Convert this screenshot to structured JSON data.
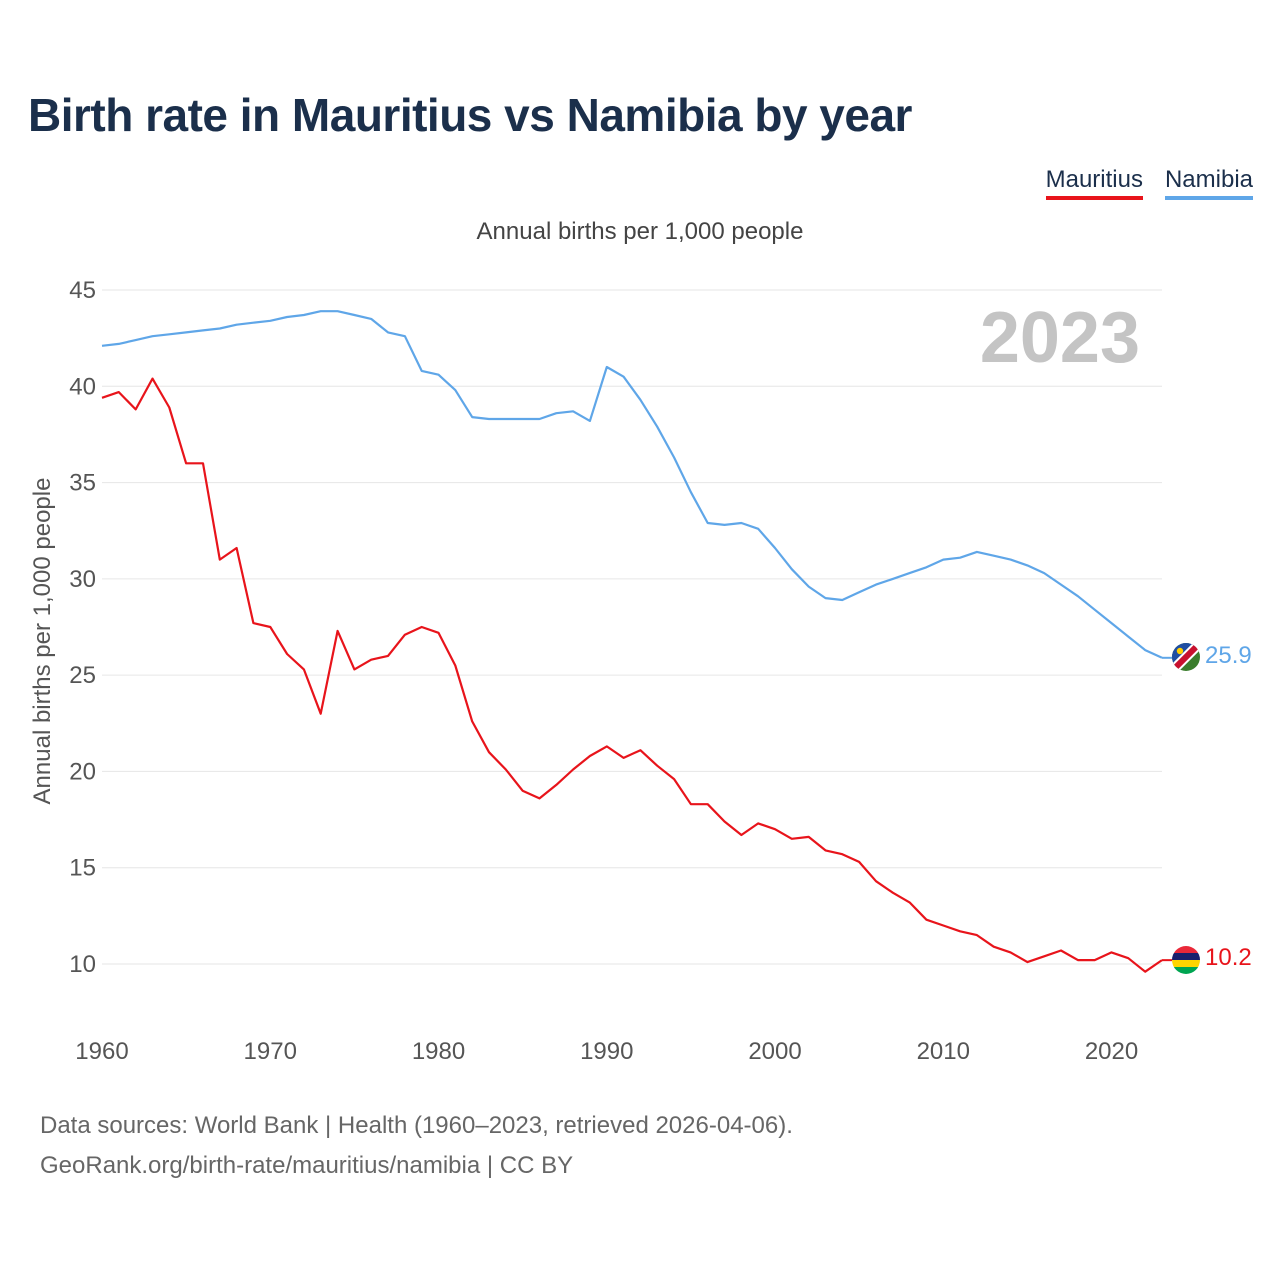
{
  "title": "Birth rate in Mauritius vs Namibia by year",
  "subtitle": "Annual births per 1,000 people",
  "footer": {
    "line1": "Data sources: World Bank | Health (1960–2023, retrieved 2026-04-06).",
    "line2": "GeoRank.org/birth-rate/mauritius/namibia | CC BY"
  },
  "legend": [
    {
      "label": "Mauritius",
      "color": "#e8141b"
    },
    {
      "label": "Namibia",
      "color": "#5fa6e8"
    }
  ],
  "chart_data": {
    "type": "line",
    "title": "Birth rate in Mauritius vs Namibia by year",
    "xlabel": "",
    "ylabel": "Annual births per 1,000 people",
    "year_label": "2023",
    "xlim": [
      1960,
      2023
    ],
    "ylim": [
      7.5,
      45
    ],
    "yticks": [
      10,
      15,
      20,
      25,
      30,
      35,
      40,
      45
    ],
    "xticks": [
      1960,
      1970,
      1980,
      1990,
      2000,
      2010,
      2020
    ],
    "grid": true,
    "x": [
      1960,
      1961,
      1962,
      1963,
      1964,
      1965,
      1966,
      1967,
      1968,
      1969,
      1970,
      1971,
      1972,
      1973,
      1974,
      1975,
      1976,
      1977,
      1978,
      1979,
      1980,
      1981,
      1982,
      1983,
      1984,
      1985,
      1986,
      1987,
      1988,
      1989,
      1990,
      1991,
      1992,
      1993,
      1994,
      1995,
      1996,
      1997,
      1998,
      1999,
      2000,
      2001,
      2002,
      2003,
      2004,
      2005,
      2006,
      2007,
      2008,
      2009,
      2010,
      2011,
      2012,
      2013,
      2014,
      2015,
      2016,
      2017,
      2018,
      2019,
      2020,
      2021,
      2022,
      2023
    ],
    "series": [
      {
        "name": "Mauritius",
        "color": "#e8141b",
        "end_label": "10.2",
        "values": [
          39.4,
          39.7,
          38.8,
          40.4,
          38.9,
          36.0,
          36.0,
          31.0,
          31.6,
          27.7,
          27.5,
          26.1,
          25.3,
          23.0,
          27.3,
          25.3,
          25.8,
          26.0,
          27.1,
          27.5,
          27.2,
          25.5,
          22.6,
          21.0,
          20.1,
          19.0,
          18.6,
          19.3,
          20.1,
          20.8,
          21.3,
          20.7,
          21.1,
          20.3,
          19.6,
          18.3,
          18.3,
          17.4,
          16.7,
          17.3,
          17.0,
          16.5,
          16.6,
          15.9,
          15.7,
          15.3,
          14.3,
          13.7,
          13.2,
          12.3,
          12.0,
          11.7,
          11.5,
          10.9,
          10.6,
          10.1,
          10.4,
          10.7,
          10.2,
          10.2,
          10.6,
          10.3,
          9.6,
          10.2
        ]
      },
      {
        "name": "Namibia",
        "color": "#5fa6e8",
        "end_label": "25.9",
        "values": [
          42.1,
          42.2,
          42.4,
          42.6,
          42.7,
          42.8,
          42.9,
          43.0,
          43.2,
          43.3,
          43.4,
          43.6,
          43.7,
          43.9,
          43.9,
          43.7,
          43.5,
          42.8,
          42.6,
          40.8,
          40.6,
          39.8,
          38.4,
          38.3,
          38.3,
          38.3,
          38.3,
          38.6,
          38.7,
          38.2,
          41.0,
          40.5,
          39.3,
          37.9,
          36.3,
          34.5,
          32.9,
          32.8,
          32.9,
          32.6,
          31.6,
          30.5,
          29.6,
          29.0,
          28.9,
          29.3,
          29.7,
          30.0,
          30.3,
          30.6,
          31.0,
          31.1,
          31.4,
          31.2,
          31.0,
          30.7,
          30.3,
          29.7,
          29.1,
          28.4,
          27.7,
          27.0,
          26.3,
          25.9
        ]
      }
    ]
  }
}
